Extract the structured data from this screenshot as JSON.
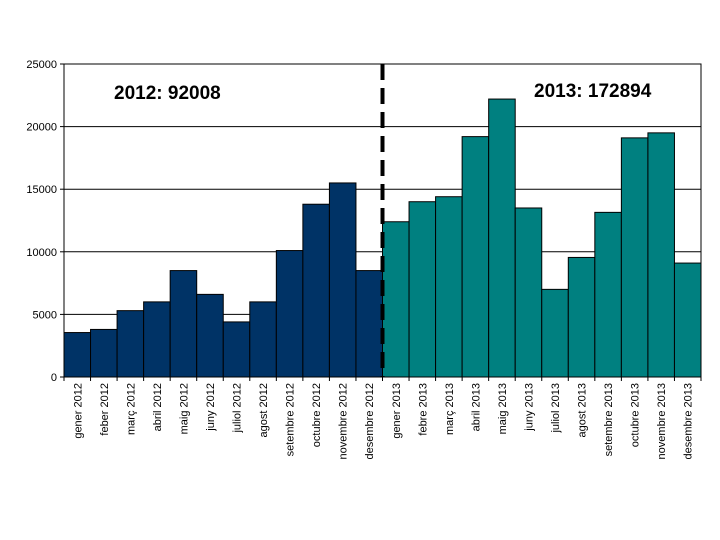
{
  "chart_data": {
    "type": "bar",
    "categories": [
      "gener 2012",
      "feber 2012",
      "març 2012",
      "abril 2012",
      "maig 2012",
      "juny 2012",
      "juliol 2012",
      "agost 2012",
      "setembre 2012",
      "octubre 2012",
      "novembre 2012",
      "desembre 2012",
      "gener 2013",
      "febre 2013",
      "març 2013",
      "abril 2013",
      "maig 2013",
      "juny 2013",
      "juliol 2013",
      "agost 2013",
      "setembre 2013",
      "octubre 2013",
      "novembre 2013",
      "desembre 2013"
    ],
    "values": [
      3550,
      3800,
      5300,
      6000,
      8500,
      6600,
      4400,
      6000,
      10100,
      13800,
      15500,
      8500,
      12400,
      14000,
      14400,
      19200,
      22200,
      13500,
      7000,
      9550,
      13150,
      19100,
      19500,
      9100
    ],
    "ylim": [
      0,
      25000
    ],
    "yticks": [
      "0",
      "5000",
      "10000",
      "15000",
      "20000",
      "25000"
    ],
    "grid": true,
    "legend": "none",
    "colors": {
      "2012": "#003366",
      "2013": "#008080",
      "border": "#000000"
    },
    "split_after_category": "desembre 2012",
    "annotations": {
      "left_total": "2012:  92008",
      "right_total": "2013: 172894"
    }
  }
}
